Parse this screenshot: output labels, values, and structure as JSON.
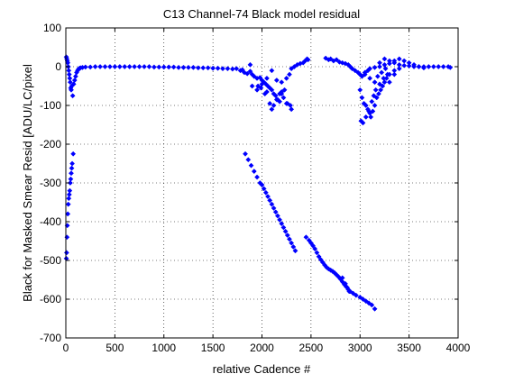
{
  "chart_data": {
    "type": "scatter",
    "title": "C13 Channel-74 Black model residual",
    "xlabel": "relative Cadence #",
    "ylabel": "Black for Masked Smear Resid [ADU/LC/pixel",
    "xlim": [
      0,
      4000
    ],
    "ylim": [
      -700,
      100
    ],
    "xticks": [
      0,
      500,
      1000,
      1500,
      2000,
      2500,
      3000,
      3500,
      4000
    ],
    "yticks": [
      -700,
      -600,
      -500,
      -400,
      -300,
      -200,
      -100,
      0,
      100
    ],
    "grid": true,
    "marker_color": "#0000ff",
    "series": [
      {
        "marker": "diamond",
        "points": [
          [
            5,
            -495
          ],
          [
            8,
            -480
          ],
          [
            12,
            -440
          ],
          [
            15,
            -410
          ],
          [
            20,
            -380
          ],
          [
            25,
            -355
          ],
          [
            30,
            -340
          ],
          [
            35,
            -330
          ],
          [
            40,
            -320
          ],
          [
            45,
            -300
          ],
          [
            50,
            -290
          ],
          [
            55,
            -275
          ],
          [
            60,
            -262
          ],
          [
            65,
            -250
          ],
          [
            75,
            -225
          ],
          [
            5,
            25
          ],
          [
            10,
            20
          ],
          [
            15,
            15
          ],
          [
            20,
            10
          ],
          [
            25,
            0
          ],
          [
            30,
            -10
          ],
          [
            35,
            -20
          ],
          [
            40,
            -30
          ],
          [
            45,
            -40
          ],
          [
            50,
            -55
          ],
          [
            55,
            -60
          ],
          [
            60,
            -50
          ],
          [
            70,
            -75
          ],
          [
            80,
            -45
          ],
          [
            90,
            -35
          ],
          [
            100,
            -25
          ],
          [
            110,
            -15
          ],
          [
            120,
            -10
          ],
          [
            130,
            -6
          ],
          [
            140,
            -4
          ],
          [
            150,
            -3
          ],
          [
            170,
            -2
          ],
          [
            200,
            -1
          ],
          [
            250,
            -1
          ],
          [
            300,
            0
          ],
          [
            350,
            0
          ],
          [
            400,
            0
          ],
          [
            450,
            0
          ],
          [
            500,
            0
          ],
          [
            550,
            0
          ],
          [
            600,
            0
          ],
          [
            650,
            0
          ],
          [
            700,
            0
          ],
          [
            750,
            0
          ],
          [
            800,
            0
          ],
          [
            850,
            0
          ],
          [
            900,
            -1
          ],
          [
            950,
            -1
          ],
          [
            1000,
            -1
          ],
          [
            1050,
            -1
          ],
          [
            1100,
            -1
          ],
          [
            1150,
            -2
          ],
          [
            1200,
            -2
          ],
          [
            1250,
            -2
          ],
          [
            1300,
            -2
          ],
          [
            1350,
            -3
          ],
          [
            1400,
            -3
          ],
          [
            1450,
            -3
          ],
          [
            1500,
            -4
          ],
          [
            1550,
            -4
          ],
          [
            1600,
            -5
          ],
          [
            1650,
            -5
          ],
          [
            1700,
            -6
          ],
          [
            1740,
            -5
          ],
          [
            1780,
            -10
          ],
          [
            1800,
            -8
          ],
          [
            1820,
            -15
          ],
          [
            1850,
            -18
          ],
          [
            1880,
            -12
          ],
          [
            1900,
            -20
          ],
          [
            1920,
            -25
          ],
          [
            1950,
            -30
          ],
          [
            1980,
            -28
          ],
          [
            2000,
            -35
          ],
          [
            2020,
            -40
          ],
          [
            2040,
            -45
          ],
          [
            2060,
            -50
          ],
          [
            2080,
            -55
          ],
          [
            2100,
            -60
          ],
          [
            2120,
            -70
          ],
          [
            2140,
            -75
          ],
          [
            2160,
            -85
          ],
          [
            2180,
            -70
          ],
          [
            2200,
            -65
          ],
          [
            2220,
            -80
          ],
          [
            2250,
            -95
          ],
          [
            1880,
            5
          ],
          [
            1900,
            -50
          ],
          [
            1950,
            -60
          ],
          [
            2000,
            -45
          ],
          [
            2050,
            -65
          ],
          [
            2080,
            -95
          ],
          [
            2100,
            -110
          ],
          [
            2150,
            -85
          ],
          [
            2180,
            -90
          ],
          [
            2200,
            -70
          ],
          [
            2230,
            -60
          ],
          [
            2260,
            -95
          ],
          [
            2290,
            -100
          ],
          [
            2300,
            -110
          ],
          [
            2050,
            -30
          ],
          [
            2100,
            -10
          ],
          [
            2150,
            -35
          ],
          [
            2200,
            -40
          ],
          [
            2250,
            -30
          ],
          [
            2280,
            -20
          ],
          [
            1960,
            -50
          ],
          [
            1990,
            -55
          ],
          [
            2030,
            -70
          ],
          [
            2120,
            -100
          ],
          [
            2300,
            -5
          ],
          [
            2330,
            0
          ],
          [
            2360,
            5
          ],
          [
            2390,
            8
          ],
          [
            2420,
            10
          ],
          [
            2440,
            15
          ],
          [
            2460,
            20
          ],
          [
            2470,
            18
          ],
          [
            2650,
            22
          ],
          [
            2680,
            18
          ],
          [
            2700,
            20
          ],
          [
            2730,
            15
          ],
          [
            2760,
            18
          ],
          [
            2790,
            12
          ],
          [
            2820,
            10
          ],
          [
            2850,
            8
          ],
          [
            2880,
            5
          ],
          [
            2900,
            0
          ],
          [
            2920,
            -5
          ],
          [
            2950,
            -10
          ],
          [
            2980,
            -15
          ],
          [
            3000,
            -20
          ],
          [
            3020,
            -25
          ],
          [
            3050,
            -15
          ],
          [
            3080,
            -10
          ],
          [
            3100,
            -5
          ],
          [
            3150,
            -2
          ],
          [
            3200,
            0
          ],
          [
            3250,
            5
          ],
          [
            3300,
            8
          ],
          [
            3350,
            10
          ],
          [
            3400,
            5
          ],
          [
            3450,
            3
          ],
          [
            3500,
            2
          ],
          [
            3550,
            0
          ],
          [
            3600,
            0
          ],
          [
            3650,
            0
          ],
          [
            3700,
            0
          ],
          [
            3750,
            0
          ],
          [
            3800,
            0
          ],
          [
            3850,
            0
          ],
          [
            3900,
            0
          ],
          [
            3920,
            -2
          ],
          [
            3000,
            -60
          ],
          [
            3020,
            -80
          ],
          [
            3040,
            -95
          ],
          [
            3060,
            -100
          ],
          [
            3080,
            -110
          ],
          [
            3100,
            -120
          ],
          [
            3110,
            -130
          ],
          [
            3130,
            -115
          ],
          [
            3150,
            -100
          ],
          [
            3170,
            -80
          ],
          [
            3190,
            -70
          ],
          [
            3210,
            -60
          ],
          [
            3230,
            -50
          ],
          [
            3250,
            -40
          ],
          [
            3270,
            -30
          ],
          [
            3300,
            -20
          ],
          [
            3350,
            -10
          ],
          [
            3400,
            -5
          ],
          [
            3010,
            -140
          ],
          [
            3030,
            -145
          ],
          [
            3060,
            -130
          ],
          [
            3090,
            -115
          ],
          [
            3120,
            -90
          ],
          [
            3140,
            -75
          ],
          [
            3160,
            -60
          ],
          [
            3200,
            -45
          ],
          [
            3240,
            -30
          ],
          [
            3280,
            -20
          ],
          [
            3200,
            10
          ],
          [
            3250,
            20
          ],
          [
            3300,
            15
          ],
          [
            3350,
            15
          ],
          [
            3400,
            20
          ],
          [
            3450,
            15
          ],
          [
            3500,
            10
          ],
          [
            3550,
            5
          ],
          [
            3600,
            0
          ],
          [
            3650,
            -3
          ],
          [
            3050,
            -20
          ],
          [
            3100,
            -30
          ],
          [
            3150,
            -40
          ],
          [
            3180,
            -25
          ],
          [
            3220,
            -15
          ],
          [
            3260,
            -5
          ],
          [
            3300,
            -40
          ],
          [
            3350,
            -20
          ],
          [
            1830,
            -225
          ],
          [
            1860,
            -240
          ],
          [
            1890,
            -255
          ],
          [
            1920,
            -270
          ],
          [
            1950,
            -285
          ],
          [
            1980,
            -300
          ],
          [
            2000,
            -305
          ],
          [
            2020,
            -315
          ],
          [
            2040,
            -325
          ],
          [
            2060,
            -335
          ],
          [
            2080,
            -345
          ],
          [
            2100,
            -355
          ],
          [
            2120,
            -365
          ],
          [
            2140,
            -375
          ],
          [
            2160,
            -385
          ],
          [
            2180,
            -395
          ],
          [
            2200,
            -405
          ],
          [
            2220,
            -415
          ],
          [
            2240,
            -425
          ],
          [
            2260,
            -435
          ],
          [
            2280,
            -445
          ],
          [
            2300,
            -455
          ],
          [
            2320,
            -465
          ],
          [
            2340,
            -475
          ],
          [
            2450,
            -440
          ],
          [
            2480,
            -448
          ],
          [
            2500,
            -455
          ],
          [
            2520,
            -462
          ],
          [
            2540,
            -470
          ],
          [
            2560,
            -480
          ],
          [
            2580,
            -490
          ],
          [
            2600,
            -498
          ],
          [
            2620,
            -505
          ],
          [
            2640,
            -512
          ],
          [
            2660,
            -518
          ],
          [
            2680,
            -522
          ],
          [
            2700,
            -525
          ],
          [
            2720,
            -528
          ],
          [
            2740,
            -532
          ],
          [
            2760,
            -537
          ],
          [
            2780,
            -542
          ],
          [
            2800,
            -548
          ],
          [
            2820,
            -555
          ],
          [
            2840,
            -562
          ],
          [
            2860,
            -568
          ],
          [
            2880,
            -575
          ],
          [
            2900,
            -580
          ],
          [
            2930,
            -585
          ],
          [
            2960,
            -590
          ],
          [
            3000,
            -595
          ],
          [
            3030,
            -600
          ],
          [
            3060,
            -605
          ],
          [
            3090,
            -610
          ],
          [
            3120,
            -615
          ],
          [
            3150,
            -625
          ],
          [
            2820,
            -545
          ],
          [
            2850,
            -560
          ],
          [
            2870,
            -570
          ],
          [
            2890,
            -580
          ]
        ]
      }
    ]
  }
}
